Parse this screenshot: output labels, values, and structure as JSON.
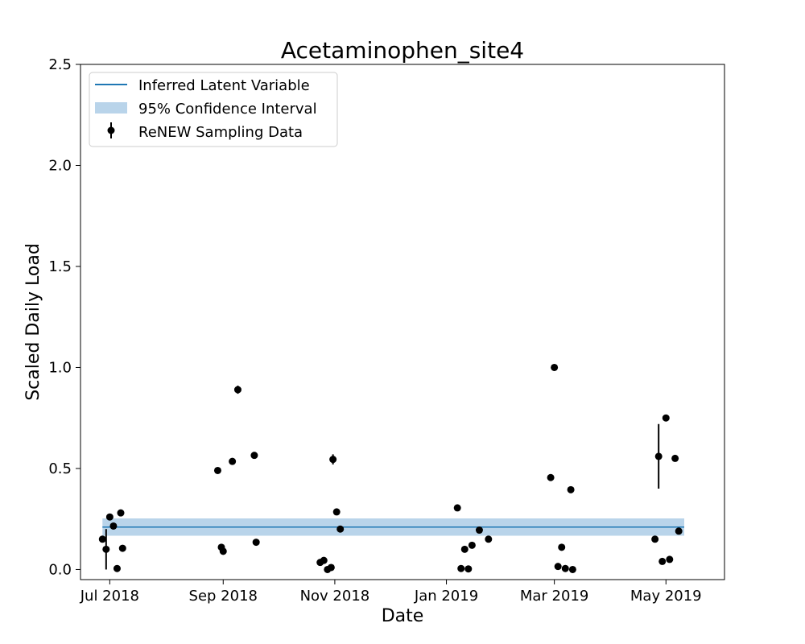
{
  "chart_data": {
    "type": "scatter",
    "title": "Acetaminophen_site4",
    "xlabel": "Date",
    "ylabel": "Scaled Daily Load",
    "ylim": [
      -0.05,
      2.5
    ],
    "xlim_days": [
      -16,
      336
    ],
    "x_unit": "days since 2018-07-01",
    "y_ticks": [
      0.0,
      0.5,
      1.0,
      1.5,
      2.0,
      2.5
    ],
    "y_tick_labels": [
      "0.0",
      "0.5",
      "1.0",
      "1.5",
      "2.0",
      "2.5"
    ],
    "x_ticks": [
      0,
      62,
      123,
      184,
      243,
      304
    ],
    "x_tick_labels": [
      "Jul 2018",
      "Sep 2018",
      "Nov 2018",
      "Jan 2019",
      "Mar 2019",
      "May 2019"
    ],
    "legend": {
      "position": "top-left",
      "entries": [
        "Inferred Latent Variable",
        "95% Confidence Interval",
        "ReNEW Sampling Data"
      ]
    },
    "colors": {
      "line": "#1f77b4",
      "band": "#b9d4ea",
      "points": "#000000"
    },
    "latent_variable": {
      "x": [
        -4,
        314
      ],
      "y": [
        0.21,
        0.21
      ]
    },
    "confidence_interval": {
      "x": [
        -4,
        314
      ],
      "lower": [
        0.167,
        0.167
      ],
      "upper": [
        0.253,
        0.253
      ]
    },
    "sampling_data": [
      {
        "x": -4,
        "y": 0.15,
        "err": 0.0
      },
      {
        "x": -2,
        "y": 0.1,
        "err": 0.1
      },
      {
        "x": 0,
        "y": 0.26,
        "err": 0.0
      },
      {
        "x": 2,
        "y": 0.215,
        "err": 0.0
      },
      {
        "x": 4,
        "y": 0.005,
        "err": 0.0
      },
      {
        "x": 6,
        "y": 0.28,
        "err": 0.0
      },
      {
        "x": 7,
        "y": 0.105,
        "err": 0.0
      },
      {
        "x": 59,
        "y": 0.49,
        "err": 0.0
      },
      {
        "x": 61,
        "y": 0.11,
        "err": 0.0
      },
      {
        "x": 62,
        "y": 0.09,
        "err": 0.0
      },
      {
        "x": 67,
        "y": 0.535,
        "err": 0.0
      },
      {
        "x": 70,
        "y": 0.89,
        "err": 0.02
      },
      {
        "x": 79,
        "y": 0.565,
        "err": 0.0
      },
      {
        "x": 80,
        "y": 0.135,
        "err": 0.0
      },
      {
        "x": 115,
        "y": 0.035,
        "err": 0.0
      },
      {
        "x": 117,
        "y": 0.045,
        "err": 0.0
      },
      {
        "x": 119,
        "y": 0.0,
        "err": 0.0
      },
      {
        "x": 121,
        "y": 0.01,
        "err": 0.0
      },
      {
        "x": 122,
        "y": 0.545,
        "err": 0.025
      },
      {
        "x": 124,
        "y": 0.285,
        "err": 0.015
      },
      {
        "x": 126,
        "y": 0.2,
        "err": 0.0
      },
      {
        "x": 190,
        "y": 0.305,
        "err": 0.0
      },
      {
        "x": 192,
        "y": 0.005,
        "err": 0.0
      },
      {
        "x": 194,
        "y": 0.1,
        "err": 0.0
      },
      {
        "x": 196,
        "y": 0.003,
        "err": 0.0
      },
      {
        "x": 198,
        "y": 0.12,
        "err": 0.0
      },
      {
        "x": 202,
        "y": 0.195,
        "err": 0.0
      },
      {
        "x": 207,
        "y": 0.15,
        "err": 0.0
      },
      {
        "x": 241,
        "y": 0.455,
        "err": 0.015
      },
      {
        "x": 243,
        "y": 1.0,
        "err": 0.0
      },
      {
        "x": 245,
        "y": 0.015,
        "err": 0.0
      },
      {
        "x": 247,
        "y": 0.11,
        "err": 0.0
      },
      {
        "x": 249,
        "y": 0.005,
        "err": 0.0
      },
      {
        "x": 252,
        "y": 0.395,
        "err": 0.0
      },
      {
        "x": 253,
        "y": 0.0,
        "err": 0.0
      },
      {
        "x": 298,
        "y": 0.15,
        "err": 0.0
      },
      {
        "x": 300,
        "y": 0.56,
        "err": 0.16
      },
      {
        "x": 302,
        "y": 0.04,
        "err": 0.0
      },
      {
        "x": 304,
        "y": 0.75,
        "err": 0.0
      },
      {
        "x": 306,
        "y": 0.05,
        "err": 0.0
      },
      {
        "x": 309,
        "y": 0.55,
        "err": 0.0
      },
      {
        "x": 311,
        "y": 0.19,
        "err": 0.0
      }
    ]
  }
}
